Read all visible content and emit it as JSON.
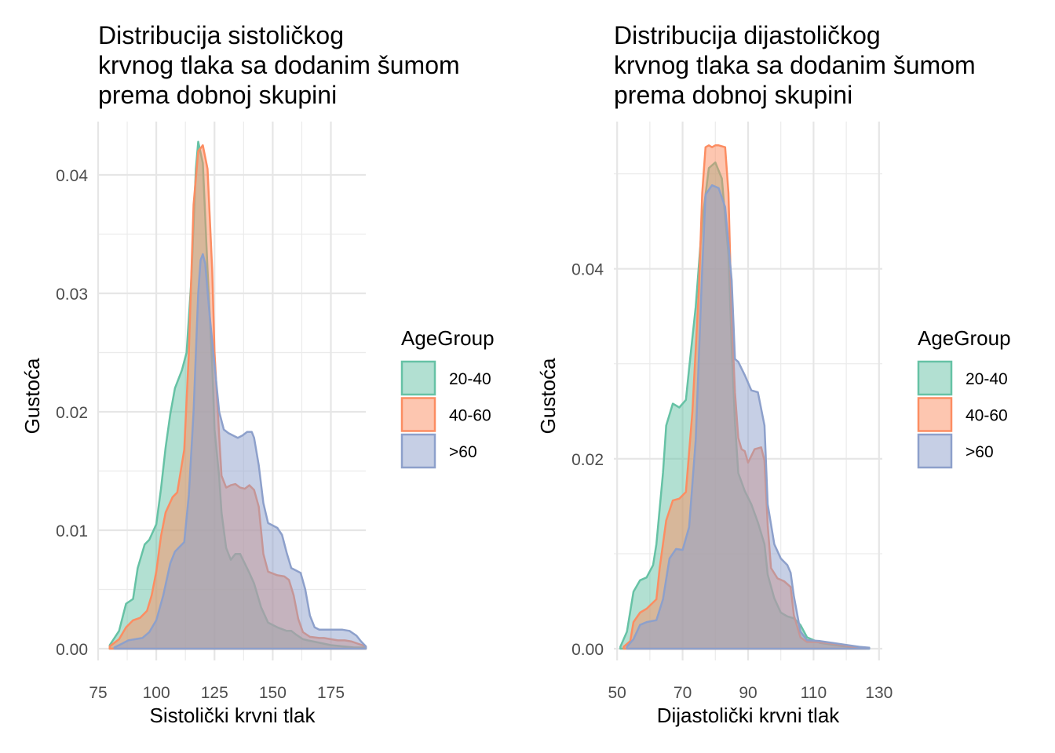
{
  "chart_data": [
    {
      "type": "area",
      "subtype": "density",
      "title": [
        "Distribucija sistoličkog",
        "krvnog tlaka sa dodanim šumom",
        "prema dobnoj skupini"
      ],
      "xlabel": "Sistolički krvni tlak",
      "ylabel": "Gustoća",
      "xlim": [
        75,
        190
      ],
      "ylim": [
        0,
        0.0445
      ],
      "x_ticks": [
        75,
        100,
        125,
        150,
        175
      ],
      "y_ticks": [
        0.0,
        0.01,
        0.02,
        0.03,
        0.04
      ],
      "x_tick_labels": [
        "75",
        "100",
        "125",
        "150",
        "175"
      ],
      "y_tick_labels": [
        "0.00",
        "0.01",
        "0.02",
        "0.03",
        "0.04"
      ],
      "grid": true,
      "legend": {
        "title": "AgeGroup",
        "placement": "right"
      },
      "series": [
        {
          "name": "20-40",
          "color": "#66C2A5",
          "points": [
            [
              80,
              0.0003
            ],
            [
              84,
              0.0015
            ],
            [
              87,
              0.0038
            ],
            [
              90,
              0.0042
            ],
            [
              92,
              0.0068
            ],
            [
              95,
              0.0088
            ],
            [
              97,
              0.0092
            ],
            [
              100,
              0.0105
            ],
            [
              102,
              0.0135
            ],
            [
              104,
              0.017
            ],
            [
              106,
              0.0198
            ],
            [
              108,
              0.022
            ],
            [
              111,
              0.0235
            ],
            [
              113,
              0.025
            ],
            [
              115,
              0.031
            ],
            [
              117,
              0.0405
            ],
            [
              118,
              0.0428
            ],
            [
              120,
              0.041
            ],
            [
              122,
              0.032
            ],
            [
              124,
              0.024
            ],
            [
              125,
              0.0185
            ],
            [
              127,
              0.0145
            ],
            [
              128,
              0.0115
            ],
            [
              130,
              0.0085
            ],
            [
              132,
              0.0075
            ],
            [
              134,
              0.008
            ],
            [
              136,
              0.008
            ],
            [
              138,
              0.0072
            ],
            [
              140,
              0.0064
            ],
            [
              142,
              0.0055
            ],
            [
              145,
              0.0035
            ],
            [
              148,
              0.0022
            ],
            [
              152,
              0.0018
            ],
            [
              156,
              0.0015
            ],
            [
              158,
              0.0015
            ],
            [
              160,
              0.0012
            ],
            [
              163,
              0.0008
            ],
            [
              165,
              0.0007
            ],
            [
              170,
              0.0005
            ],
            [
              175,
              0.0003
            ],
            [
              180,
              0.0002
            ],
            [
              185,
              0.0001
            ],
            [
              190,
              0.0001
            ]
          ]
        },
        {
          "name": "40-60",
          "color": "#FC8D62",
          "points": [
            [
              80,
              0.0002
            ],
            [
              84,
              0.0008
            ],
            [
              87,
              0.0018
            ],
            [
              90,
              0.0024
            ],
            [
              93,
              0.0026
            ],
            [
              96,
              0.0032
            ],
            [
              98,
              0.0045
            ],
            [
              100,
              0.0065
            ],
            [
              102,
              0.0095
            ],
            [
              104,
              0.0115
            ],
            [
              107,
              0.0128
            ],
            [
              109,
              0.0132
            ],
            [
              112,
              0.0168
            ],
            [
              114,
              0.025
            ],
            [
              116,
              0.0375
            ],
            [
              118,
              0.042
            ],
            [
              120,
              0.0425
            ],
            [
              122,
              0.0405
            ],
            [
              124,
              0.032
            ],
            [
              125,
              0.025
            ],
            [
              127,
              0.018
            ],
            [
              128,
              0.0146
            ],
            [
              130,
              0.0136
            ],
            [
              132,
              0.0138
            ],
            [
              134,
              0.0139
            ],
            [
              136,
              0.0136
            ],
            [
              138,
              0.0135
            ],
            [
              140,
              0.0138
            ],
            [
              142,
              0.0134
            ],
            [
              144,
              0.012
            ],
            [
              146,
              0.008
            ],
            [
              148,
              0.0065
            ],
            [
              152,
              0.0062
            ],
            [
              155,
              0.0061
            ],
            [
              157,
              0.0058
            ],
            [
              159,
              0.0045
            ],
            [
              161,
              0.0025
            ],
            [
              163,
              0.0014
            ],
            [
              166,
              0.001
            ],
            [
              170,
              0.0009
            ],
            [
              172,
              0.0009
            ],
            [
              175,
              0.0008
            ],
            [
              178,
              0.0007
            ],
            [
              181,
              0.0007
            ],
            [
              184,
              0.0006
            ],
            [
              187,
              0.0004
            ],
            [
              190,
              0.0002
            ]
          ]
        },
        {
          "name": ">60",
          "color": "#8DA0CB",
          "points": [
            [
              82,
              0.0001
            ],
            [
              85,
              0.0004
            ],
            [
              88,
              0.0007
            ],
            [
              91,
              0.0008
            ],
            [
              94,
              0.0009
            ],
            [
              97,
              0.0014
            ],
            [
              100,
              0.0024
            ],
            [
              103,
              0.0045
            ],
            [
              106,
              0.0072
            ],
            [
              108,
              0.0082
            ],
            [
              110,
              0.0086
            ],
            [
              112,
              0.009
            ],
            [
              114,
              0.013
            ],
            [
              116,
              0.02
            ],
            [
              118,
              0.03
            ],
            [
              119,
              0.0328
            ],
            [
              120,
              0.0333
            ],
            [
              121,
              0.0325
            ],
            [
              123,
              0.028
            ],
            [
              125,
              0.024
            ],
            [
              127,
              0.02
            ],
            [
              129,
              0.0185
            ],
            [
              131,
              0.0182
            ],
            [
              133,
              0.018
            ],
            [
              135,
              0.0178
            ],
            [
              137,
              0.018
            ],
            [
              139,
              0.0183
            ],
            [
              141,
              0.0183
            ],
            [
              142,
              0.0178
            ],
            [
              144,
              0.0155
            ],
            [
              146,
              0.0123
            ],
            [
              148,
              0.0106
            ],
            [
              150,
              0.0104
            ],
            [
              152,
              0.0102
            ],
            [
              154,
              0.0096
            ],
            [
              156,
              0.0081
            ],
            [
              158,
              0.0068
            ],
            [
              160,
              0.0066
            ],
            [
              162,
              0.0064
            ],
            [
              164,
              0.005
            ],
            [
              166,
              0.0028
            ],
            [
              168,
              0.0018
            ],
            [
              170,
              0.0016
            ],
            [
              173,
              0.0016
            ],
            [
              176,
              0.0016
            ],
            [
              180,
              0.0016
            ],
            [
              183,
              0.0015
            ],
            [
              186,
              0.0011
            ],
            [
              188,
              0.0006
            ],
            [
              190,
              0.0002
            ]
          ]
        }
      ]
    },
    {
      "type": "area",
      "subtype": "density",
      "title": [
        "Distribucija dijastoličkog",
        "krvnog tlaka sa dodanim šumom",
        "prema dobnoj skupini"
      ],
      "xlabel": "Dijastolički krvni tlak",
      "ylabel": "Gustoća",
      "xlim": [
        49,
        131
      ],
      "ylim": [
        0,
        0.0555
      ],
      "x_ticks": [
        50,
        70,
        90,
        110,
        130
      ],
      "y_ticks": [
        0.0,
        0.02,
        0.04
      ],
      "x_tick_labels": [
        "50",
        "70",
        "90",
        "110",
        "130"
      ],
      "y_tick_labels": [
        "0.00",
        "0.02",
        "0.04"
      ],
      "grid": true,
      "legend": {
        "title": "AgeGroup",
        "placement": "right"
      },
      "series": [
        {
          "name": "20-40",
          "color": "#66C2A5",
          "points": [
            [
              51,
              0.0002
            ],
            [
              53,
              0.0018
            ],
            [
              55,
              0.006
            ],
            [
              57,
              0.0072
            ],
            [
              59,
              0.0075
            ],
            [
              61,
              0.0088
            ],
            [
              62,
              0.011
            ],
            [
              64,
              0.0185
            ],
            [
              65,
              0.0235
            ],
            [
              67,
              0.0258
            ],
            [
              69,
              0.0254
            ],
            [
              71,
              0.0262
            ],
            [
              72,
              0.0295
            ],
            [
              74,
              0.036
            ],
            [
              76,
              0.045
            ],
            [
              78,
              0.0506
            ],
            [
              80,
              0.0512
            ],
            [
              82,
              0.0495
            ],
            [
              84,
              0.0415
            ],
            [
              85,
              0.0318
            ],
            [
              86,
              0.0238
            ],
            [
              87,
              0.0185
            ],
            [
              89,
              0.0166
            ],
            [
              91,
              0.0152
            ],
            [
              93,
              0.0133
            ],
            [
              95,
              0.011
            ],
            [
              96,
              0.0078
            ],
            [
              98,
              0.0053
            ],
            [
              100,
              0.0038
            ],
            [
              102,
              0.0034
            ],
            [
              104,
              0.0032
            ],
            [
              106,
              0.0025
            ],
            [
              108,
              0.0012
            ],
            [
              112,
              0.0006
            ],
            [
              118,
              0.0003
            ],
            [
              124,
              0.0001
            ],
            [
              127,
              0.0001
            ]
          ]
        },
        {
          "name": "40-60",
          "color": "#FC8D62",
          "points": [
            [
              52,
              0.0002
            ],
            [
              54,
              0.0008
            ],
            [
              55,
              0.0028
            ],
            [
              57,
              0.0038
            ],
            [
              59,
              0.0042
            ],
            [
              62,
              0.0052
            ],
            [
              63,
              0.0085
            ],
            [
              65,
              0.0135
            ],
            [
              67,
              0.0156
            ],
            [
              69,
              0.0158
            ],
            [
              71,
              0.0165
            ],
            [
              73,
              0.025
            ],
            [
              75,
              0.038
            ],
            [
              76,
              0.048
            ],
            [
              77,
              0.0528
            ],
            [
              78,
              0.053
            ],
            [
              79,
              0.0528
            ],
            [
              80,
              0.053
            ],
            [
              81,
              0.053
            ],
            [
              83,
              0.0528
            ],
            [
              84,
              0.048
            ],
            [
              85,
              0.035
            ],
            [
              86,
              0.027
            ],
            [
              87,
              0.0222
            ],
            [
              88,
              0.021
            ],
            [
              89,
              0.0208
            ],
            [
              90,
              0.0196
            ],
            [
              92,
              0.021
            ],
            [
              94,
              0.0212
            ],
            [
              95,
              0.0198
            ],
            [
              96,
              0.013
            ],
            [
              97,
              0.0085
            ],
            [
              99,
              0.0074
            ],
            [
              101,
              0.0071
            ],
            [
              103,
              0.0065
            ],
            [
              104,
              0.0035
            ],
            [
              106,
              0.0012
            ],
            [
              108,
              0.0007
            ],
            [
              111,
              0.0007
            ],
            [
              114,
              0.0006
            ],
            [
              118,
              0.0004
            ],
            [
              122,
              0.0002
            ],
            [
              126,
              0.0001
            ]
          ]
        },
        {
          "name": ">60",
          "color": "#8DA0CB",
          "points": [
            [
              53,
              0.0002
            ],
            [
              55,
              0.001
            ],
            [
              57,
              0.0025
            ],
            [
              59,
              0.0028
            ],
            [
              62,
              0.003
            ],
            [
              64,
              0.0052
            ],
            [
              66,
              0.0095
            ],
            [
              68,
              0.0105
            ],
            [
              70,
              0.0104
            ],
            [
              72,
              0.0128
            ],
            [
              74,
              0.022
            ],
            [
              76,
              0.04
            ],
            [
              77,
              0.0478
            ],
            [
              79,
              0.0488
            ],
            [
              81,
              0.0485
            ],
            [
              83,
              0.0465
            ],
            [
              85,
              0.0388
            ],
            [
              86,
              0.0305
            ],
            [
              87,
              0.0302
            ],
            [
              89,
              0.0288
            ],
            [
              91,
              0.0272
            ],
            [
              93,
              0.027
            ],
            [
              95,
              0.0235
            ],
            [
              96,
              0.0152
            ],
            [
              98,
              0.011
            ],
            [
              100,
              0.0095
            ],
            [
              102,
              0.0088
            ],
            [
              103,
              0.008
            ],
            [
              104,
              0.0055
            ],
            [
              106,
              0.0018
            ],
            [
              108,
              0.0009
            ],
            [
              112,
              0.0008
            ],
            [
              116,
              0.0006
            ],
            [
              120,
              0.0004
            ],
            [
              124,
              0.0002
            ],
            [
              127,
              0.0001
            ]
          ]
        }
      ]
    }
  ]
}
